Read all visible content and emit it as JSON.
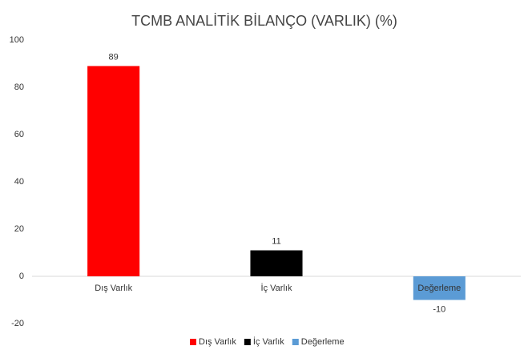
{
  "chart_data": {
    "type": "bar",
    "title": "TCMB ANALİTİK BİLANÇO (VARLIK) (%)",
    "categories": [
      "Dış Varlık",
      "İç Varlık",
      "Değerleme"
    ],
    "values": [
      89,
      11,
      -10
    ],
    "colors": [
      "#ff0000",
      "#000000",
      "#5b9bd5"
    ],
    "ylim": [
      -20,
      100
    ],
    "yticks": [
      -20,
      0,
      20,
      40,
      60,
      80,
      100
    ],
    "grid": false,
    "legend": "bottom"
  }
}
